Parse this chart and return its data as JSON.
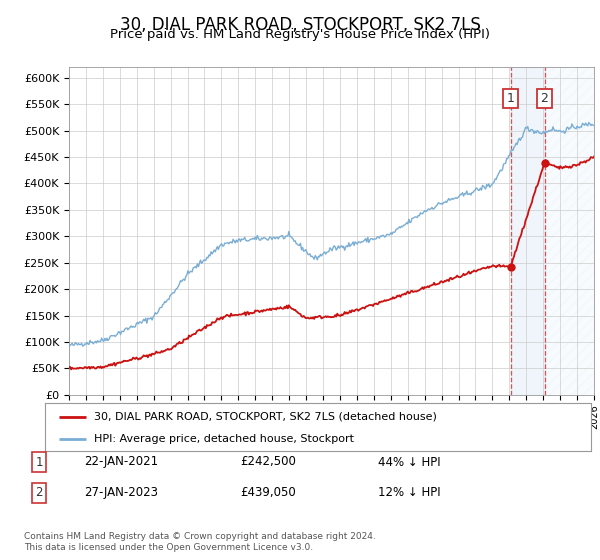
{
  "title": "30, DIAL PARK ROAD, STOCKPORT, SK2 7LS",
  "subtitle": "Price paid vs. HM Land Registry's House Price Index (HPI)",
  "title_fontsize": 12,
  "subtitle_fontsize": 9.5,
  "ylim": [
    0,
    620000
  ],
  "yticks": [
    0,
    50000,
    100000,
    150000,
    200000,
    250000,
    300000,
    350000,
    400000,
    450000,
    500000,
    550000,
    600000
  ],
  "ytick_labels": [
    "£0",
    "£50K",
    "£100K",
    "£150K",
    "£200K",
    "£250K",
    "£300K",
    "£350K",
    "£400K",
    "£450K",
    "£500K",
    "£550K",
    "£600K"
  ],
  "hpi_color": "#7aadd4",
  "price_color": "#cc1111",
  "marker_color": "#cc1111",
  "bg_color": "#ffffff",
  "grid_color": "#cccccc",
  "sale1_date": 2021.07,
  "sale1_price": 242500,
  "sale1_label": "22-JAN-2021",
  "sale1_pct": "44% ↓ HPI",
  "sale2_date": 2023.08,
  "sale2_price": 439050,
  "sale2_label": "27-JAN-2023",
  "sale2_pct": "12% ↓ HPI",
  "legend1": "30, DIAL PARK ROAD, STOCKPORT, SK2 7LS (detached house)",
  "legend2": "HPI: Average price, detached house, Stockport",
  "footnote": "Contains HM Land Registry data © Crown copyright and database right 2024.\nThis data is licensed under the Open Government Licence v3.0.",
  "xmin": 1995,
  "xmax": 2026,
  "shade_start": 2021.07,
  "shade_end": 2023.08
}
